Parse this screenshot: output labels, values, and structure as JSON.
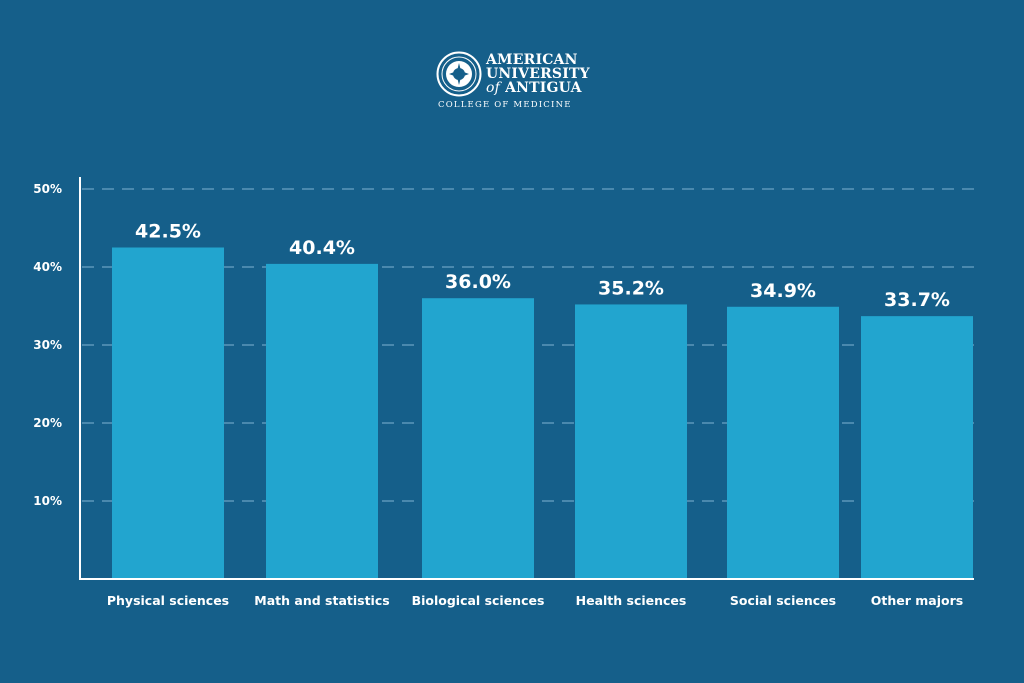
{
  "logo": {
    "line1": "AMERICAN",
    "line2": "UNIVERSITY",
    "line3_of": "of",
    "line3_rest": "ANTIGUA",
    "subline": "COLLEGE OF MEDICINE",
    "icon": "university-seal-icon"
  },
  "colors": {
    "background": "#155f8a",
    "bar": "#22a5cf",
    "text": "#ffffff",
    "grid": "#7fb3d1",
    "axis": "#ffffff"
  },
  "chart_data": {
    "type": "bar",
    "title": "",
    "xlabel": "",
    "ylabel": "",
    "categories": [
      "Physical sciences",
      "Math and statistics",
      "Biological sciences",
      "Health sciences",
      "Social sciences",
      "Other majors"
    ],
    "values": [
      42.5,
      40.4,
      36.0,
      35.2,
      34.9,
      33.7
    ],
    "value_labels": [
      "42.5%",
      "40.4%",
      "36.0%",
      "35.2%",
      "34.9%",
      "33.7%"
    ],
    "ylim": [
      0,
      50
    ],
    "yticks": [
      10,
      20,
      30,
      40,
      50
    ],
    "ytick_labels": [
      "10%",
      "20%",
      "30%",
      "40%",
      "50%"
    ],
    "grid": true,
    "legend": "none"
  }
}
